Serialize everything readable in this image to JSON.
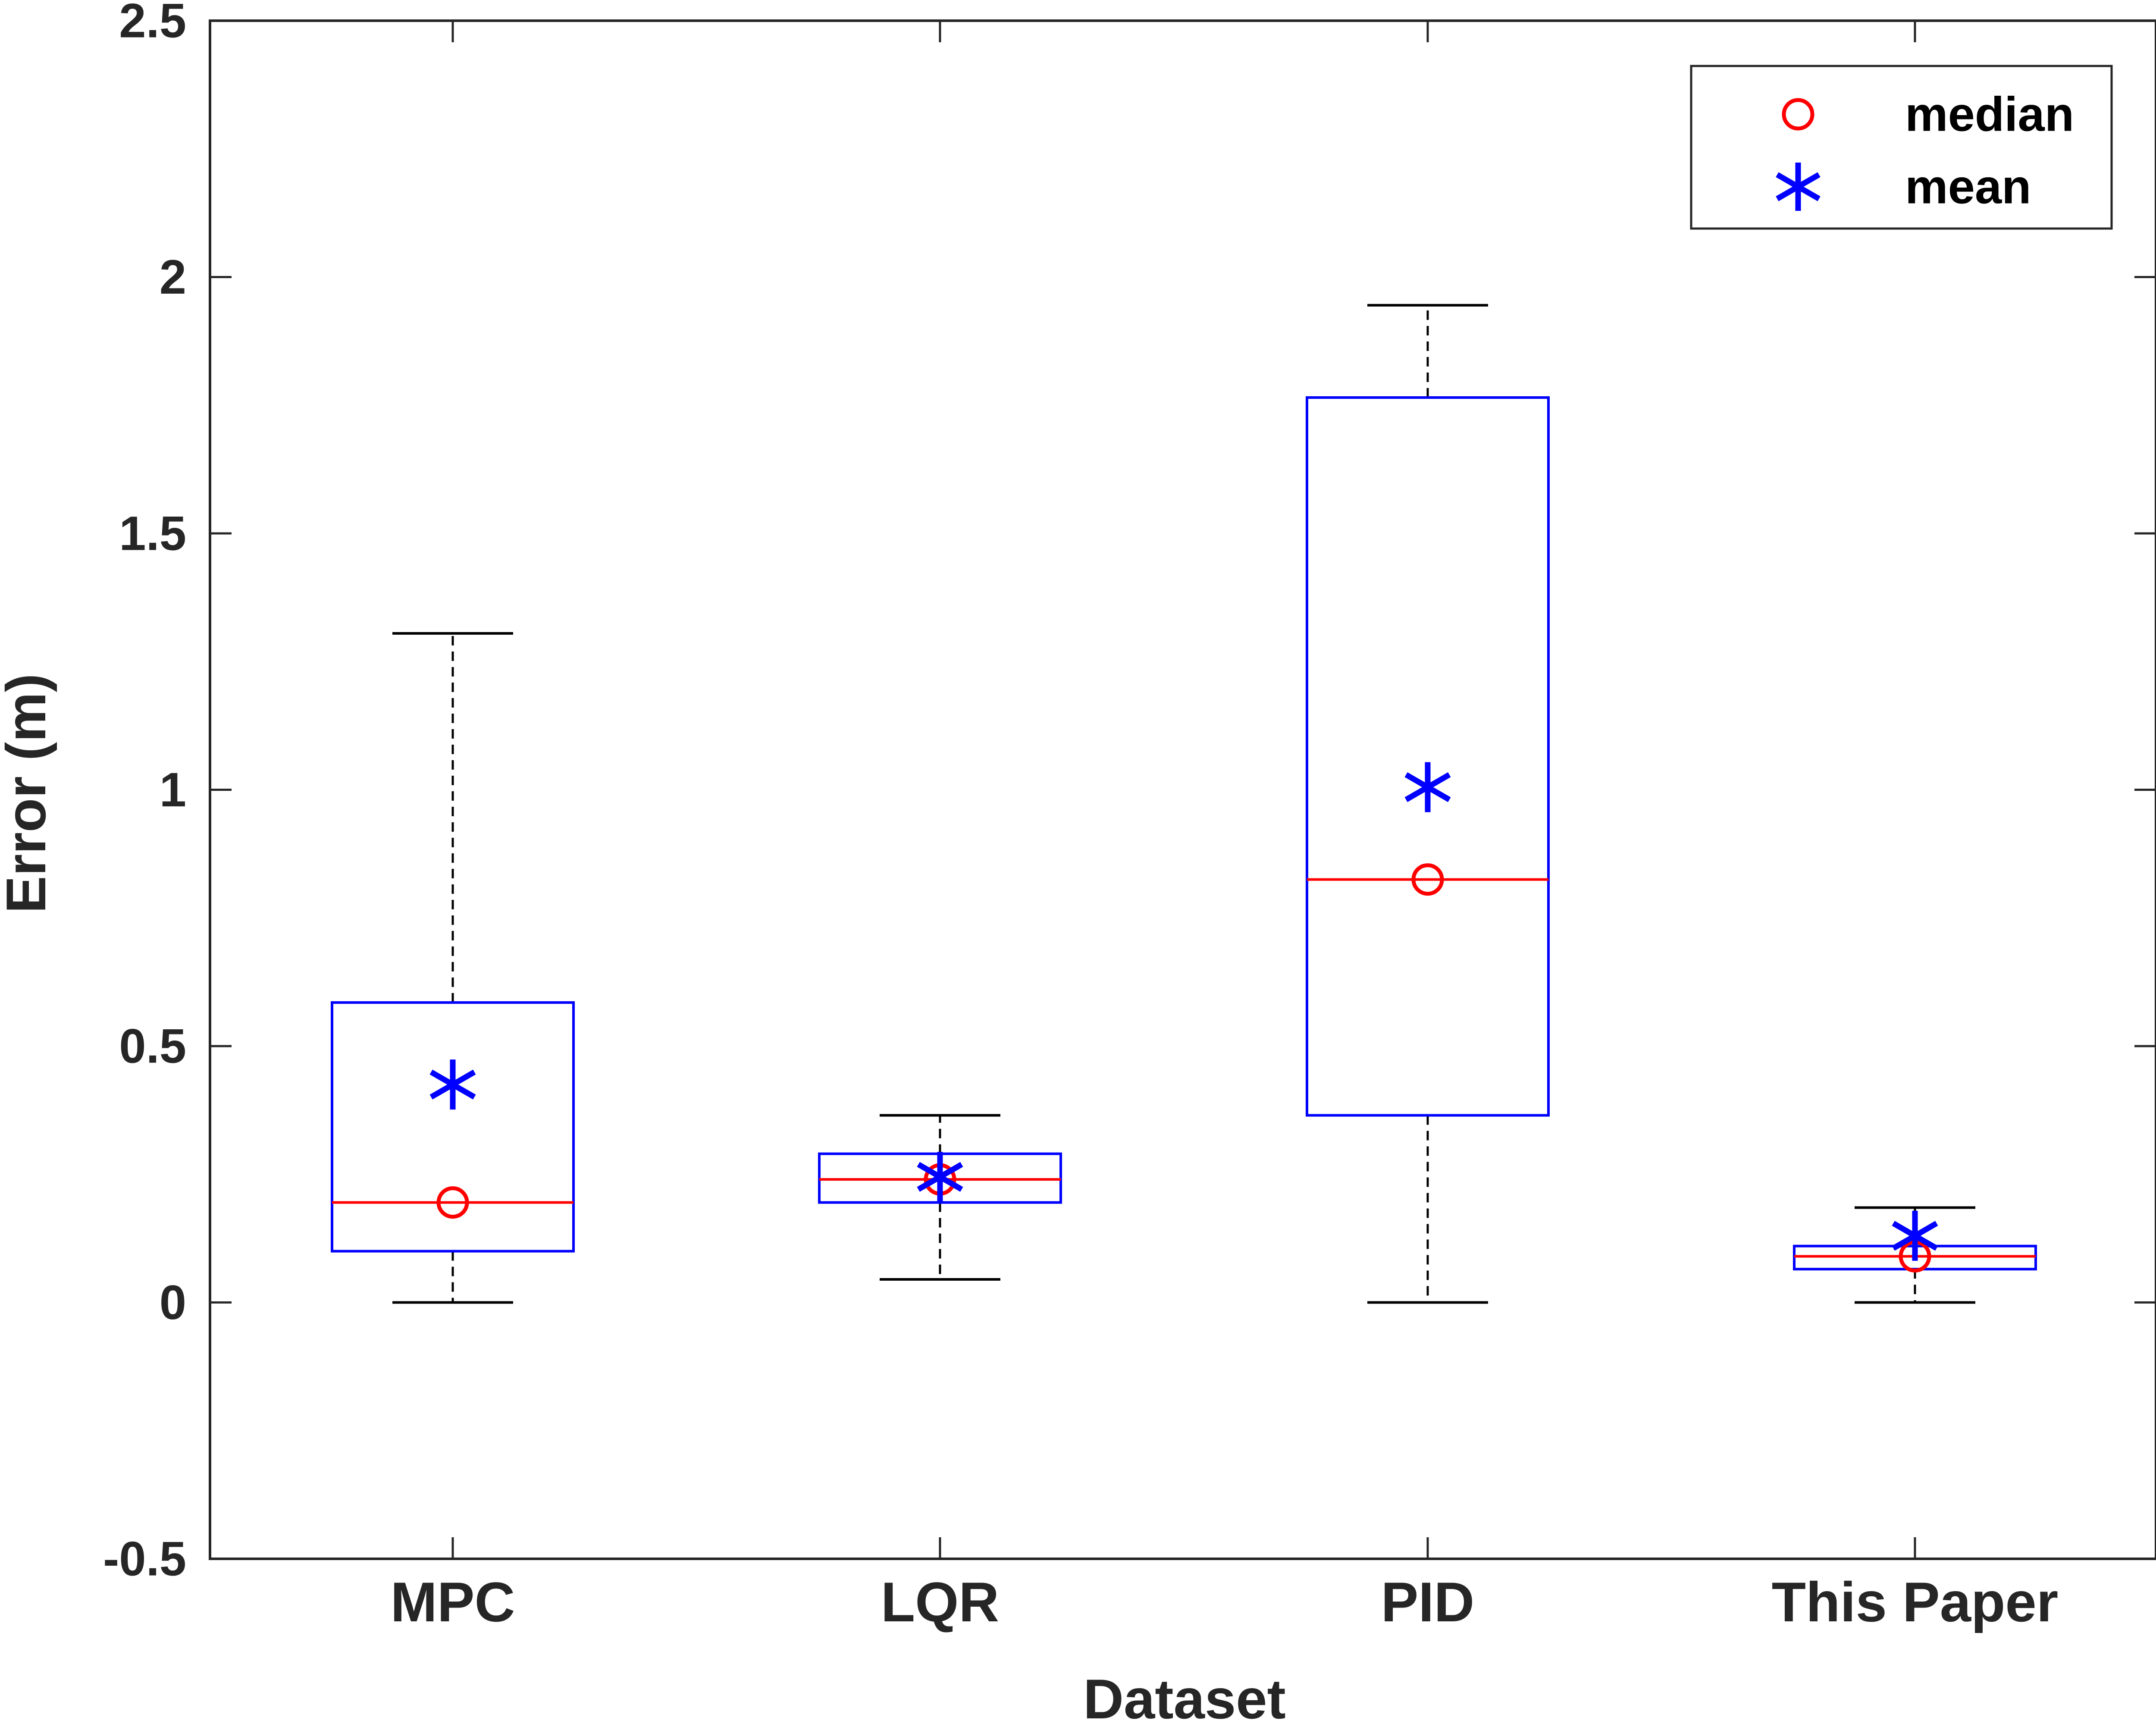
{
  "chart_data": {
    "type": "box",
    "title": "",
    "xlabel": "Dataset",
    "ylabel": "Error (m)",
    "ylim": [
      -0.5,
      2.5
    ],
    "yticks": [
      -0.5,
      0,
      0.5,
      1,
      1.5,
      2,
      2.5
    ],
    "ytick_labels": [
      "-0.5",
      "0",
      "0.5",
      "1",
      "1.5",
      "2",
      "2.5"
    ],
    "grid": false,
    "categories": [
      "MPC",
      "LQR",
      "PID",
      "This Paper"
    ],
    "boxes": [
      {
        "name": "MPC",
        "whisker_low": 0.0,
        "q1": 0.1,
        "median": 0.195,
        "q3": 0.585,
        "whisker_high": 1.305,
        "mean": 0.425
      },
      {
        "name": "LQR",
        "whisker_low": 0.045,
        "q1": 0.195,
        "median": 0.24,
        "q3": 0.29,
        "whisker_high": 0.365,
        "mean": 0.245
      },
      {
        "name": "PID",
        "whisker_low": 0.0,
        "q1": 0.365,
        "median": 0.825,
        "q3": 1.765,
        "whisker_high": 1.945,
        "mean": 1.005
      },
      {
        "name": "This Paper",
        "whisker_low": 0.0,
        "q1": 0.065,
        "median": 0.09,
        "q3": 0.11,
        "whisker_high": 0.185,
        "mean": 0.13
      }
    ],
    "legend": {
      "position": "top-right",
      "entries": [
        {
          "label": "median",
          "marker": "circle",
          "color": "#ff0000"
        },
        {
          "label": "mean",
          "marker": "asterisk",
          "color": "#0000ff"
        }
      ]
    },
    "colors": {
      "box": "#0000ff",
      "median_line": "#ff0000",
      "median_marker": "#ff0000",
      "mean_marker": "#0000ff",
      "whisker": "#000000",
      "axis": "#262626"
    }
  }
}
